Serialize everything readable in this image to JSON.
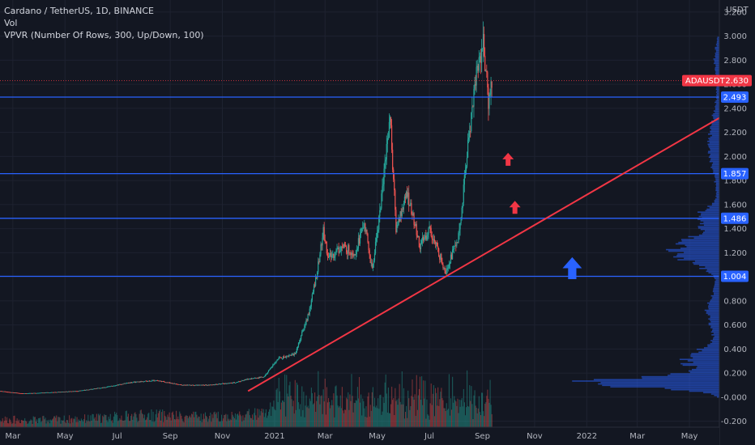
{
  "legend": {
    "line1": "Cardano / TetherUS, 1D, BINANCE",
    "line2": "Vol",
    "line3": "VPVR (Number Of Rows, 300, Up/Down, 100)"
  },
  "colors": {
    "background": "#131722",
    "grid": "#1e2230",
    "up": "#26a69a",
    "down": "#ef5350",
    "hline": "#2962ff",
    "trend": "#f23645",
    "price_tag": "#f23645",
    "vp_up": "#2962ff",
    "vp_text": "#b2b5be"
  },
  "chart_data": {
    "type": "candlestick",
    "title": "Cardano / TetherUS, 1D, BINANCE",
    "indicators": [
      "Vol",
      "VPVR (Number Of Rows, 300, Up/Down, 100)"
    ],
    "y_unit": "USDT",
    "ylim": [
      -0.25,
      3.3
    ],
    "y_ticks": [
      "3.200",
      "3.000",
      "2.800",
      "2.600",
      "2.400",
      "2.200",
      "2.000",
      "1.800",
      "1.600",
      "1.400",
      "1.200",
      "1.000",
      "0.800",
      "0.600",
      "0.400",
      "0.200",
      "-0.000",
      "-0.200"
    ],
    "x_ticks": [
      "Mar",
      "May",
      "Jul",
      "Sep",
      "Nov",
      "2021",
      "Mar",
      "May",
      "Jul",
      "Sep",
      "Nov",
      "2022",
      "Mar",
      "May"
    ],
    "x_range": [
      "2020-02-15",
      "2022-06-05"
    ],
    "last_price": {
      "label": "ADAUSDT",
      "value": "2.630"
    },
    "horizontal_levels": [
      {
        "value": 2.493,
        "label": "2.493"
      },
      {
        "value": 1.857,
        "label": "1.857"
      },
      {
        "value": 1.486,
        "label": "1.486"
      },
      {
        "value": 1.004,
        "label": "1.004"
      }
    ],
    "trendline": {
      "start": [
        "2020-12-01",
        0.05
      ],
      "end": [
        "2022-06-05",
        2.32
      ]
    },
    "arrows": [
      {
        "date": "2021-10-01",
        "price": 1.97,
        "color": "red",
        "direction": "up",
        "size": "small"
      },
      {
        "date": "2021-10-09",
        "price": 1.57,
        "color": "red",
        "direction": "up",
        "size": "small"
      },
      {
        "date": "2021-12-15",
        "price": 1.06,
        "color": "blue",
        "direction": "up",
        "size": "large"
      }
    ],
    "price_path": [
      [
        "2020-02-15",
        0.05
      ],
      [
        "2020-03-13",
        0.03
      ],
      [
        "2020-04-15",
        0.04
      ],
      [
        "2020-05-15",
        0.05
      ],
      [
        "2020-06-15",
        0.08
      ],
      [
        "2020-07-15",
        0.12
      ],
      [
        "2020-08-15",
        0.14
      ],
      [
        "2020-09-15",
        0.1
      ],
      [
        "2020-10-15",
        0.1
      ],
      [
        "2020-11-15",
        0.12
      ],
      [
        "2020-12-01",
        0.15
      ],
      [
        "2020-12-20",
        0.17
      ],
      [
        "2021-01-05",
        0.32
      ],
      [
        "2021-01-25",
        0.36
      ],
      [
        "2021-02-10",
        0.7
      ],
      [
        "2021-02-20",
        1.05
      ],
      [
        "2021-02-27",
        1.38
      ],
      [
        "2021-03-05",
        1.15
      ],
      [
        "2021-03-20",
        1.25
      ],
      [
        "2021-04-05",
        1.2
      ],
      [
        "2021-04-16",
        1.45
      ],
      [
        "2021-04-25",
        1.05
      ],
      [
        "2021-05-05",
        1.6
      ],
      [
        "2021-05-16",
        2.35
      ],
      [
        "2021-05-23",
        1.4
      ],
      [
        "2021-06-05",
        1.7
      ],
      [
        "2021-06-20",
        1.25
      ],
      [
        "2021-07-01",
        1.4
      ],
      [
        "2021-07-20",
        1.05
      ],
      [
        "2021-08-05",
        1.35
      ],
      [
        "2021-08-15",
        2.1
      ],
      [
        "2021-08-25",
        2.7
      ],
      [
        "2021-09-02",
        2.95
      ],
      [
        "2021-09-08",
        2.45
      ],
      [
        "2021-09-12",
        2.63
      ]
    ]
  }
}
